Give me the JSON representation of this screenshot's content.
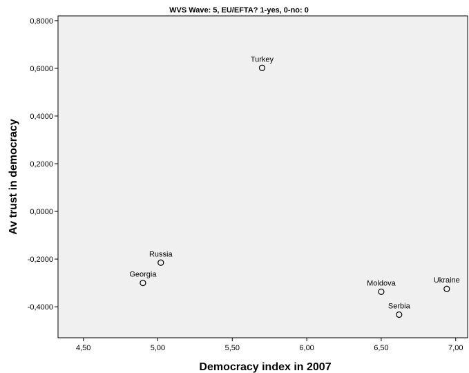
{
  "chart_data": {
    "type": "scatter",
    "title": "WVS Wave: 5, EU/EFTA? 1-yes, 0-no: 0",
    "xlabel": "Democracy index in 2007",
    "ylabel": "Av trust in democracy",
    "xlim": [
      4.33,
      7.08
    ],
    "ylim": [
      -0.53,
      0.82
    ],
    "x_ticks": [
      4.5,
      5.0,
      5.5,
      6.0,
      6.5,
      7.0
    ],
    "x_tick_labels": [
      "4,50",
      "5,00",
      "5,50",
      "6,00",
      "6,50",
      "7,00"
    ],
    "y_ticks": [
      0.8,
      0.6,
      0.4,
      0.2,
      0.0,
      -0.2,
      -0.4
    ],
    "y_tick_labels": [
      "0,8000",
      "0,6000",
      "0,4000",
      "0,2000",
      "0,0000",
      "-0,2000",
      "-0,4000"
    ],
    "grid": false,
    "background": "#f0f0f0",
    "marker": "hollow-circle",
    "points": [
      {
        "label": "Turkey",
        "x": 5.7,
        "y": 0.602
      },
      {
        "label": "Russia",
        "x": 5.02,
        "y": -0.215
      },
      {
        "label": "Georgia",
        "x": 4.9,
        "y": -0.3
      },
      {
        "label": "Moldova",
        "x": 6.5,
        "y": -0.337
      },
      {
        "label": "Serbia",
        "x": 6.62,
        "y": -0.433
      },
      {
        "label": "Ukraine",
        "x": 6.94,
        "y": -0.325
      }
    ]
  }
}
